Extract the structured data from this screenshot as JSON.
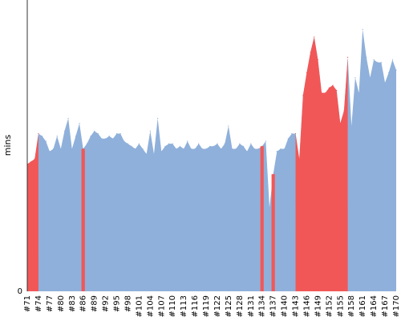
{
  "chart_data": {
    "type": "area",
    "title": "",
    "xlabel": "",
    "ylabel": "mins",
    "ylim": [
      0,
      100
    ],
    "grid": false,
    "legend": "none",
    "y_ticks": [
      "0"
    ],
    "x_ticks": [
      "#71",
      "#74",
      "#77",
      "#80",
      "#83",
      "#86",
      "#89",
      "#92",
      "#95",
      "#98",
      "#101",
      "#104",
      "#107",
      "#110",
      "#113",
      "#116",
      "#119",
      "#122",
      "#125",
      "#128",
      "#131",
      "#134",
      "#137",
      "#140",
      "#143",
      "#146",
      "#149",
      "#152",
      "#155",
      "#158",
      "#161",
      "#164",
      "#167",
      "#170"
    ],
    "x_start": 71,
    "x_end": 170,
    "values": [
      50,
      51,
      52,
      62,
      61,
      59,
      55,
      56,
      61,
      56,
      63,
      68,
      56,
      61,
      66,
      56,
      58,
      61,
      63,
      62,
      60,
      60,
      61,
      60,
      62,
      62,
      59,
      58,
      57,
      56,
      58,
      56,
      54,
      63,
      54,
      68,
      55,
      57,
      58,
      58,
      56,
      57,
      56,
      59,
      56,
      56,
      58,
      56,
      56,
      57,
      57,
      58,
      56,
      58,
      65,
      56,
      56,
      58,
      57,
      55,
      58,
      56,
      56,
      57,
      59,
      33,
      46,
      55,
      56,
      56,
      60,
      62,
      62,
      52,
      77,
      86,
      94,
      100,
      91,
      78,
      78,
      80,
      81,
      79,
      66,
      71,
      92,
      65,
      84,
      78,
      103,
      92,
      84,
      91,
      90,
      90,
      82,
      86,
      91,
      87
    ],
    "colors": {
      "normal": "#8fb0da",
      "highlight": "#f25757",
      "axis": "#333333"
    },
    "highlight_ranges": [
      [
        71,
        74
      ],
      [
        86,
        86
      ],
      [
        134,
        134
      ],
      [
        137,
        137
      ],
      [
        143,
        157
      ]
    ]
  }
}
